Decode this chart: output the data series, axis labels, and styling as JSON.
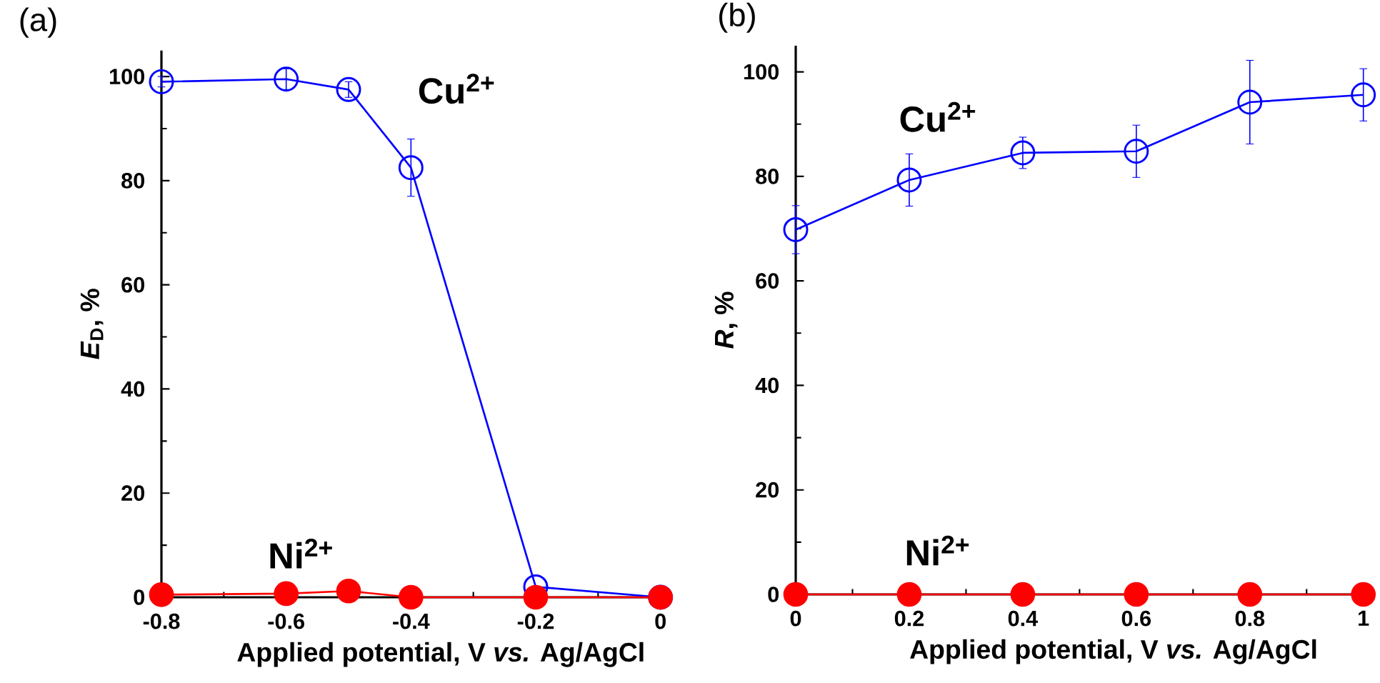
{
  "chart_data": [
    {
      "type": "line",
      "title": "(a)",
      "xlabel": "Applied potential, V *vs.* Ag/AgCl",
      "ylabel": "*E*$_{D}$, %",
      "x": [
        -0.8,
        -0.6,
        -0.5,
        -0.4,
        -0.2,
        0
      ],
      "series": [
        {
          "name": "Cu$^{2+}$",
          "color": "#0000ff",
          "marker": "circle",
          "values": [
            99,
            99.5,
            97.5,
            82.5,
            2,
            0
          ],
          "errors": [
            1,
            2,
            1.5,
            5.5,
            null,
            null
          ]
        },
        {
          "name": "Ni$^{2+}$",
          "color": "#ff0000",
          "marker": "circle",
          "values": [
            0.5,
            0.7,
            1.2,
            0,
            0,
            0
          ]
        }
      ],
      "xlim": [
        -0.8,
        0
      ],
      "xticks": [
        -0.8,
        -0.6,
        -0.4,
        -0.2,
        0
      ],
      "ylim": [
        0,
        105
      ],
      "yticks": [
        0,
        20,
        40,
        60,
        80,
        100
      ]
    },
    {
      "type": "line",
      "title": "(b)",
      "xlabel": "Applied potential, V *vs.* Ag/AgCl",
      "ylabel": "*R*, %",
      "x": [
        0,
        0.2,
        0.4,
        0.6,
        0.8,
        1
      ],
      "series": [
        {
          "name": "Cu$^{2+}$",
          "color": "#0000ff",
          "marker": "circle",
          "values": [
            69.8,
            79.3,
            84.5,
            84.8,
            94.2,
            95.6
          ],
          "errors": [
            4.6,
            5,
            3,
            5,
            8,
            5
          ]
        },
        {
          "name": "Ni$^{2+}$",
          "color": "#ff0000",
          "marker": "circle",
          "values": [
            0,
            0,
            0,
            0,
            0,
            0
          ]
        }
      ],
      "xlim": [
        0,
        1
      ],
      "xticks": [
        0,
        0.2,
        0.4,
        0.6,
        0.8,
        1
      ],
      "ylim": [
        0,
        105
      ],
      "yticks": [
        0,
        20,
        40,
        60,
        80,
        100
      ]
    }
  ]
}
